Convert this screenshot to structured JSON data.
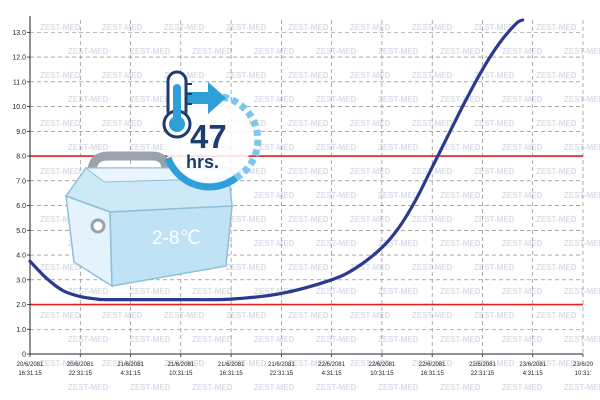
{
  "chart_data": {
    "type": "line",
    "title": "",
    "xlabel": "",
    "ylabel": "",
    "ylim": [
      0,
      13.5
    ],
    "y_ticks": [
      "0",
      "1.0",
      "2.0",
      "3.0",
      "4.0",
      "5.0",
      "6.0",
      "7.0",
      "8.0",
      "9.0",
      "10.0",
      "11.0",
      "12.0",
      "13.0"
    ],
    "x_ticks": [
      [
        "20/6/2081",
        "16:31:15"
      ],
      [
        "20/6/2081",
        "22:31:15"
      ],
      [
        "21/6/2081",
        "4:31:15"
      ],
      [
        "21/6/2081",
        "10:31:15"
      ],
      [
        "21/6/2081",
        "16:31:15"
      ],
      [
        "21/6/2081",
        "22:31:15"
      ],
      [
        "22/6/2081",
        "4:31:15"
      ],
      [
        "22/6/2081",
        "10:31:15"
      ],
      [
        "22/6/2081",
        "16:31:15"
      ],
      [
        "22/6/2081",
        "22:31:15"
      ],
      [
        "23/6/2081",
        "4:31:15"
      ],
      [
        "23/6/20",
        "10:31:"
      ]
    ],
    "x_hours": [
      0,
      6,
      12,
      18,
      24,
      30,
      36,
      42,
      48,
      54,
      60,
      66
    ],
    "grid": true,
    "thresholds": [
      {
        "value": 2.0,
        "color": "#e02020"
      },
      {
        "value": 8.0,
        "color": "#e02020"
      }
    ],
    "series": [
      {
        "color": "#2b3990",
        "x": [
          0,
          2,
          4,
          6,
          8,
          9,
          12,
          18,
          24,
          30,
          36,
          39,
          42,
          44,
          46,
          48,
          50,
          52,
          54,
          56,
          58,
          58.8
        ],
        "y": [
          3.75,
          3.05,
          2.55,
          2.32,
          2.22,
          2.2,
          2.2,
          2.2,
          2.22,
          2.45,
          3.0,
          3.5,
          4.3,
          5.1,
          6.2,
          7.55,
          8.9,
          10.25,
          11.5,
          12.55,
          13.35,
          13.5
        ]
      }
    ]
  },
  "badge": {
    "hours": "47",
    "hours_unit": "hrs.",
    "range_label": "2-8℃",
    "accent_color": "#2e9fd9",
    "navy_color": "#1d3d6e"
  },
  "watermark": "ZEST-MED"
}
